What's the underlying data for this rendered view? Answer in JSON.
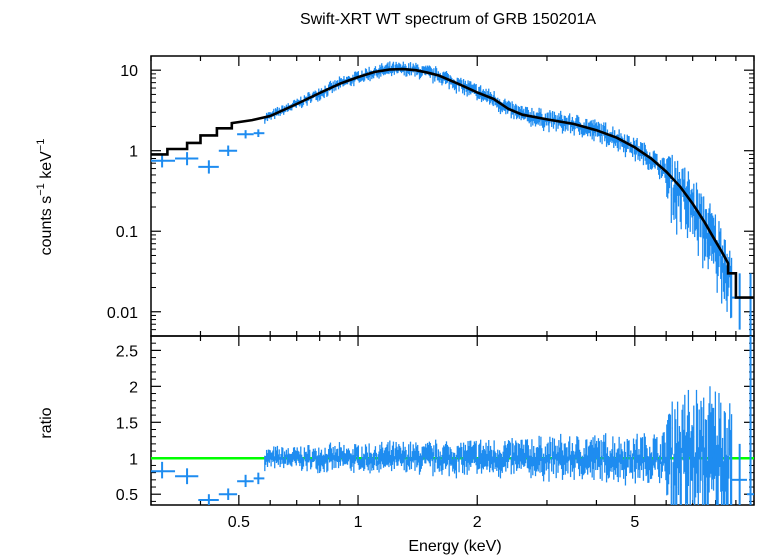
{
  "chart_data": {
    "type": "scatter",
    "title": "Swift-XRT WT spectrum of GRB 150201A",
    "xlabel": "Energy (keV)",
    "xscale": "log",
    "xlim": [
      0.3,
      10
    ],
    "x_tick_labels": [
      "0.5",
      "1",
      "2",
      "5"
    ],
    "x_ticks": [
      0.5,
      1,
      2,
      5
    ],
    "panels": {
      "spectrum": {
        "ylabel_main": "counts s",
        "ylabel_exp1": "−1",
        "ylabel_mid": " keV",
        "ylabel_exp2": "−1",
        "yscale": "log",
        "ylim": [
          0.005,
          15
        ],
        "y_tick_labels": [
          "10",
          "1",
          "0.1",
          "0.01"
        ],
        "y_ticks": [
          10,
          1,
          0.1,
          0.01
        ],
        "data_color": "#1e8cf0",
        "model_color": "#000000",
        "data": [
          {
            "x": 0.32,
            "y": 0.75,
            "xerr": [
              0.3,
              0.345
            ],
            "yerr": [
              0.62,
              0.9
            ]
          },
          {
            "x": 0.37,
            "y": 0.8,
            "xerr": [
              0.345,
              0.395
            ],
            "yerr": [
              0.66,
              0.96
            ]
          },
          {
            "x": 0.42,
            "y": 0.63,
            "xerr": [
              0.395,
              0.445
            ],
            "yerr": [
              0.52,
              0.76
            ]
          },
          {
            "x": 0.47,
            "y": 1.0,
            "xerr": [
              0.445,
              0.495
            ],
            "yerr": [
              0.86,
              1.16
            ]
          },
          {
            "x": 0.52,
            "y": 1.6,
            "xerr": [
              0.495,
              0.545
            ],
            "yerr": [
              1.42,
              1.8
            ]
          },
          {
            "x": 0.56,
            "y": 1.65,
            "xerr": [
              0.545,
              0.58
            ],
            "yerr": [
              1.48,
              1.84
            ]
          },
          {
            "x": 9.2,
            "y": 0.015,
            "xerr": [
              8.8,
              9.6
            ],
            "yerr": [
              0.006,
              0.03
            ]
          },
          {
            "x": 9.8,
            "y": 0.015,
            "xerr": [
              9.6,
              10.0
            ],
            "yerr": [
              0.004,
              0.03
            ]
          }
        ],
        "model": [
          {
            "x": 0.3,
            "y": 0.9
          },
          {
            "x": 0.33,
            "y": 0.9
          },
          {
            "x": 0.33,
            "y": 1.05
          },
          {
            "x": 0.37,
            "y": 1.05
          },
          {
            "x": 0.37,
            "y": 1.25
          },
          {
            "x": 0.4,
            "y": 1.25
          },
          {
            "x": 0.4,
            "y": 1.55
          },
          {
            "x": 0.44,
            "y": 1.55
          },
          {
            "x": 0.44,
            "y": 1.9
          },
          {
            "x": 0.48,
            "y": 1.9
          },
          {
            "x": 0.48,
            "y": 2.2
          },
          {
            "x": 0.54,
            "y": 2.4
          },
          {
            "x": 0.6,
            "y": 2.7
          },
          {
            "x": 0.7,
            "y": 3.8
          },
          {
            "x": 0.8,
            "y": 5.2
          },
          {
            "x": 0.9,
            "y": 6.8
          },
          {
            "x": 1.0,
            "y": 8.2
          },
          {
            "x": 1.1,
            "y": 9.5
          },
          {
            "x": 1.2,
            "y": 10.2
          },
          {
            "x": 1.3,
            "y": 10.3
          },
          {
            "x": 1.4,
            "y": 10.0
          },
          {
            "x": 1.5,
            "y": 9.3
          },
          {
            "x": 1.6,
            "y": 8.6
          },
          {
            "x": 1.8,
            "y": 6.7
          },
          {
            "x": 2.0,
            "y": 5.3
          },
          {
            "x": 2.2,
            "y": 4.4
          },
          {
            "x": 2.4,
            "y": 3.3
          },
          {
            "x": 2.6,
            "y": 2.8
          },
          {
            "x": 3.0,
            "y": 2.45
          },
          {
            "x": 3.5,
            "y": 2.15
          },
          {
            "x": 4.0,
            "y": 1.8
          },
          {
            "x": 4.5,
            "y": 1.45
          },
          {
            "x": 5.0,
            "y": 1.1
          },
          {
            "x": 5.5,
            "y": 0.8
          },
          {
            "x": 6.0,
            "y": 0.55
          },
          {
            "x": 6.5,
            "y": 0.36
          },
          {
            "x": 7.0,
            "y": 0.22
          },
          {
            "x": 7.5,
            "y": 0.13
          },
          {
            "x": 8.0,
            "y": 0.075
          },
          {
            "x": 8.3,
            "y": 0.055
          },
          {
            "x": 8.6,
            "y": 0.04
          },
          {
            "x": 8.6,
            "y": 0.03
          },
          {
            "x": 9.0,
            "y": 0.03
          },
          {
            "x": 9.0,
            "y": 0.015
          },
          {
            "x": 10.0,
            "y": 0.015
          }
        ]
      },
      "ratio": {
        "ylabel": "ratio",
        "ylim": [
          0.35,
          2.7
        ],
        "y_tick_labels": [
          "0.5",
          "1",
          "1.5",
          "2",
          "2.5"
        ],
        "y_ticks": [
          0.5,
          1,
          1.5,
          2,
          2.5
        ],
        "reference_line": 1,
        "reference_color": "#00ff00",
        "data_color": "#1e8cf0",
        "data": [
          {
            "x": 0.32,
            "y": 0.82,
            "xerr": [
              0.3,
              0.345
            ],
            "yerr": [
              0.72,
              0.95
            ]
          },
          {
            "x": 0.37,
            "y": 0.75,
            "xerr": [
              0.345,
              0.395
            ],
            "yerr": [
              0.64,
              0.86
            ]
          },
          {
            "x": 0.42,
            "y": 0.42,
            "xerr": [
              0.395,
              0.445
            ],
            "yerr": [
              0.35,
              0.5
            ]
          },
          {
            "x": 0.47,
            "y": 0.5,
            "xerr": [
              0.445,
              0.495
            ],
            "yerr": [
              0.42,
              0.58
            ]
          },
          {
            "x": 0.52,
            "y": 0.68,
            "xerr": [
              0.495,
              0.545
            ],
            "yerr": [
              0.6,
              0.77
            ]
          },
          {
            "x": 0.56,
            "y": 0.72,
            "xerr": [
              0.545,
              0.58
            ],
            "yerr": [
              0.64,
              0.8
            ]
          },
          {
            "x": 9.2,
            "y": 0.7,
            "xerr": [
              8.8,
              9.6
            ],
            "yerr": [
              0.35,
              1.2
            ]
          },
          {
            "x": 9.8,
            "y": 0.5,
            "xerr": [
              9.6,
              10.0
            ],
            "yerr": [
              0.35,
              2.7
            ]
          }
        ]
      }
    }
  }
}
